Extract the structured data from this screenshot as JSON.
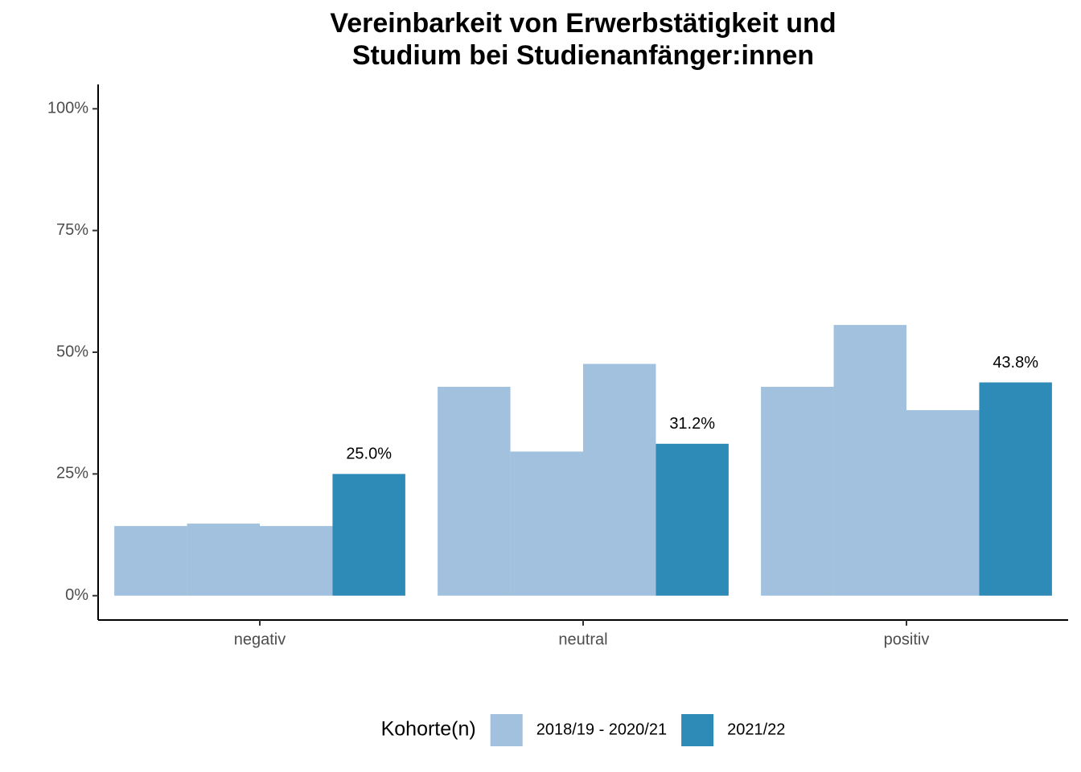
{
  "chart_data": {
    "type": "bar",
    "title": [
      "Vereinbarkeit von Erwerbstätigkeit und",
      "Studium bei Studienanfänger:innen"
    ],
    "categories": [
      "negativ",
      "neutral",
      "positiv"
    ],
    "legend_title": "Kohorte(n)",
    "legend_position": "bottom",
    "series": [
      {
        "name": "2018/19 - 2020/21",
        "color": "#a1c1de",
        "values": [
          [
            14.3,
            14.8,
            14.3
          ],
          [
            42.9,
            29.6,
            47.6
          ],
          [
            42.9,
            55.6,
            38.1
          ]
        ]
      },
      {
        "name": "2021/22",
        "color": "#2e8bb8",
        "values": [
          25.0,
          31.2,
          43.8
        ],
        "value_labels": [
          "25.0%",
          "31.2%",
          "43.8%"
        ]
      }
    ],
    "ylim": [
      -5,
      105
    ],
    "yticks": [
      {
        "value": 0,
        "label": "0%"
      },
      {
        "value": 25,
        "label": "25%"
      },
      {
        "value": 50,
        "label": "50%"
      },
      {
        "value": 75,
        "label": "75%"
      },
      {
        "value": 100,
        "label": "100%"
      }
    ],
    "grid": false
  }
}
